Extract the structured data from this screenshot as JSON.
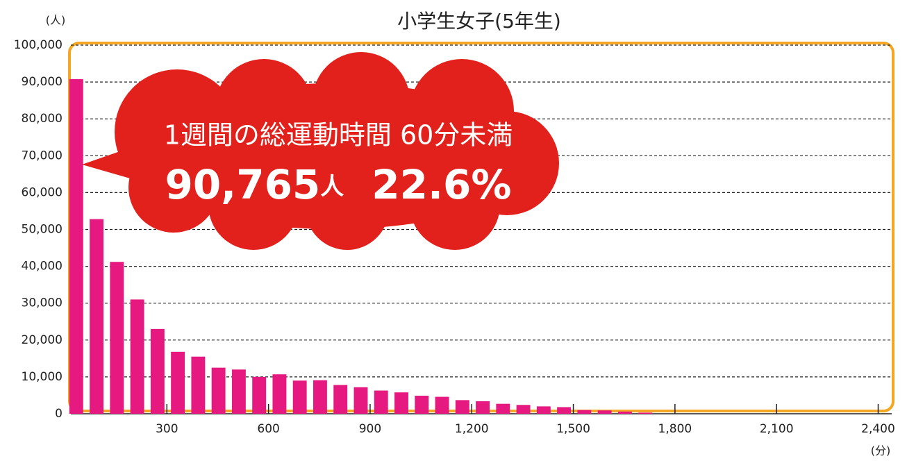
{
  "chart_data": {
    "type": "histogram",
    "title": "小学生女子(5年生)",
    "y_unit": "(人)",
    "x_unit": "(分)",
    "bins": [
      0,
      60,
      120,
      180,
      240,
      300,
      360,
      420,
      480,
      540,
      600,
      660,
      720,
      780,
      840,
      900,
      960,
      1020,
      1080,
      1140,
      1200,
      1260,
      1320,
      1380,
      1440,
      1500,
      1560,
      1620,
      1680,
      1740
    ],
    "values": [
      90765,
      52800,
      41200,
      31000,
      23000,
      16800,
      15500,
      12500,
      12000,
      10000,
      10700,
      9000,
      9100,
      7800,
      7200,
      6300,
      5800,
      4900,
      4600,
      3700,
      3400,
      2700,
      2400,
      2000,
      1800,
      1000,
      900,
      600,
      300
    ],
    "color": "#e5197f",
    "xlim": [
      0,
      2440
    ],
    "ylim": [
      0,
      100000
    ],
    "xticks": [
      300,
      600,
      900,
      {
        "value": 1200,
        "label": "1,200"
      },
      {
        "value": 1500,
        "label": "1,500"
      },
      {
        "value": 1800,
        "label": "1,800"
      },
      {
        "value": 2100,
        "label": "2,100"
      },
      {
        "value": 2400,
        "label": "2,400"
      }
    ],
    "yticks": [
      0,
      {
        "value": 10000,
        "label": "10,000"
      },
      {
        "value": 20000,
        "label": "20,000"
      },
      {
        "value": 30000,
        "label": "30,000"
      },
      {
        "value": 40000,
        "label": "40,000"
      },
      {
        "value": 50000,
        "label": "50,000"
      },
      {
        "value": 60000,
        "label": "60,000"
      },
      {
        "value": 70000,
        "label": "70,000"
      },
      {
        "value": 80000,
        "label": "80,000"
      },
      {
        "value": 90000,
        "label": "90,000"
      },
      {
        "value": 100000,
        "label": "100,000"
      }
    ],
    "grid": true,
    "annotation": {
      "label": "1週間の総運動時間 60分未満",
      "count": "90,765",
      "count_unit": "人",
      "share": "22.6%"
    }
  }
}
